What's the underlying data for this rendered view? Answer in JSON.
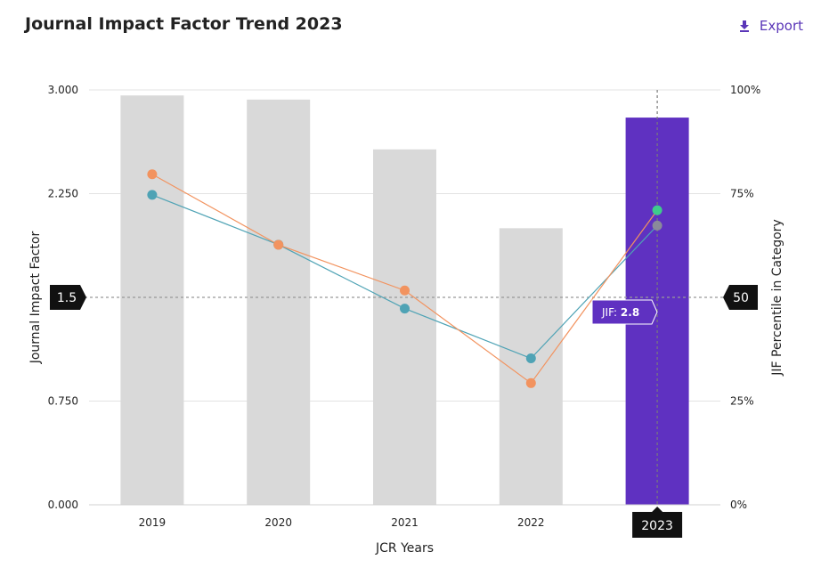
{
  "header": {
    "title": "Journal Impact Factor Trend 2023",
    "export_label": "Export",
    "export_icon": "download-icon"
  },
  "colors": {
    "bar_default": "#d9d9d9",
    "bar_selected": "#5f31c1",
    "jif_line": "#f2935f",
    "percentile_line": "#4fa3b5",
    "highlight_jif_point": "#3ecb8c",
    "highlight_pct_point": "#8a8a9a",
    "marker_bg": "#111111"
  },
  "chart_data": {
    "type": "bar",
    "xlabel": "JCR Years",
    "ylabel": "Journal Impact Factor",
    "ylabel_right": "JIF Percentile in Category",
    "categories": [
      "2019",
      "2020",
      "2021",
      "2022",
      "2023"
    ],
    "selected_category": "2023",
    "ylim": [
      0,
      3
    ],
    "yticks": [
      "0.000",
      "0.750",
      "1.5",
      "2.250",
      "3.000"
    ],
    "ylim_right": [
      0,
      100
    ],
    "yticks_right": [
      "0%",
      "25%",
      "50",
      "75%",
      "100%"
    ],
    "reference_line": {
      "left_label": "1.5",
      "right_label": "50",
      "value": 1.5
    },
    "grid": true,
    "series": [
      {
        "kind": "bar",
        "values": [
          2.96,
          2.93,
          2.57,
          2.0,
          2.8
        ]
      },
      {
        "kind": "line",
        "values": [
          2.39,
          1.88,
          1.55,
          0.88,
          2.13
        ]
      },
      {
        "kind": "line",
        "axis": "right",
        "values": [
          74.7,
          62.7,
          47.3,
          35.3,
          67.3
        ]
      }
    ],
    "tooltip": {
      "label": "JIF:",
      "value": "2.8"
    }
  }
}
